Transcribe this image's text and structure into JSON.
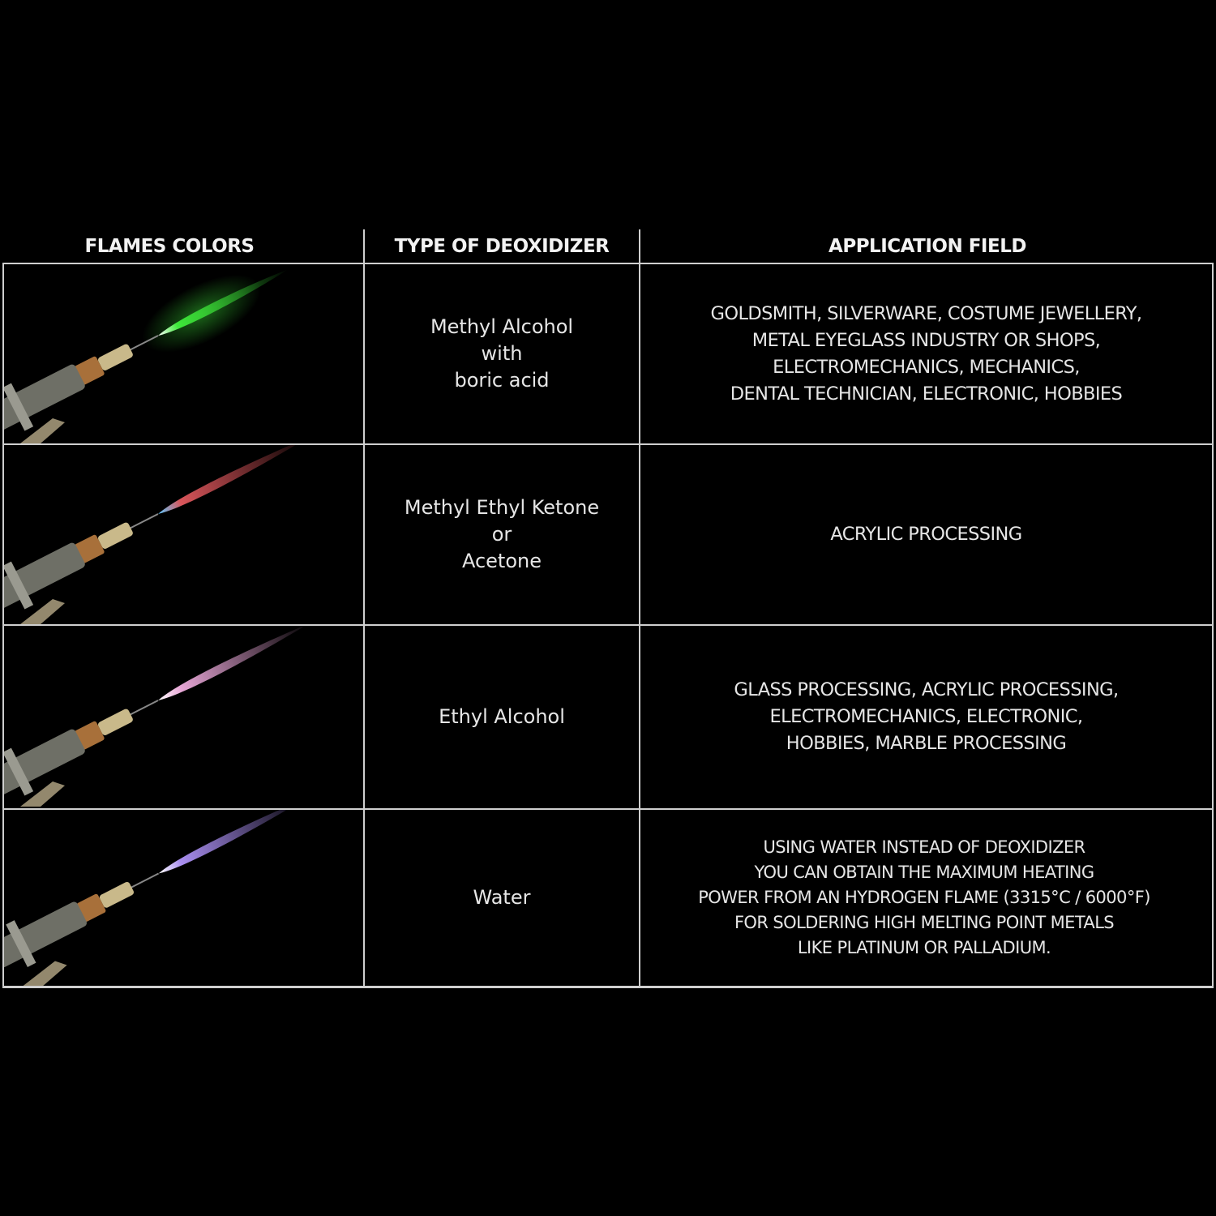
{
  "headers": {
    "flames": "FLAMES COLORS",
    "deoxidizer": "TYPE OF DEOXIDIZER",
    "application": "APPLICATION FIELD"
  },
  "rows": [
    {
      "flame_color": "#3ee83a",
      "deoxidizer": "Methyl Alcohol\nwith\nboric acid",
      "application": "GOLDSMITH, SILVERWARE, COSTUME JEWELLERY,\nMETAL EYEGLASS INDUSTRY OR SHOPS,\nELECTROMECHANICS, MECHANICS,\nDENTAL TECHNICIAN, ELECTRONIC, HOBBIES"
    },
    {
      "flame_color": "#d9555a",
      "deoxidizer": "Methyl Ethyl Ketone\nor\nAcetone",
      "application": "ACRYLIC PROCESSING"
    },
    {
      "flame_color": "#e7a6d6",
      "deoxidizer": "Ethyl Alcohol",
      "application": "GLASS PROCESSING, ACRYLIC PROCESSING,\nELECTROMECHANICS, ELECTRONIC,\nHOBBIES, MARBLE PROCESSING"
    },
    {
      "flame_color": "#a98ef0",
      "deoxidizer": "Water",
      "application": "USING WATER INSTEAD OF DEOXIDIZER\nYOU CAN OBTAIN THE MAXIMUM HEATING\nPOWER FROM AN HYDROGEN FLAME (3315°C / 6000°F)\nFOR SOLDERING HIGH MELTING POINT METALS\nLIKE PLATINUM OR PALLADIUM."
    }
  ]
}
